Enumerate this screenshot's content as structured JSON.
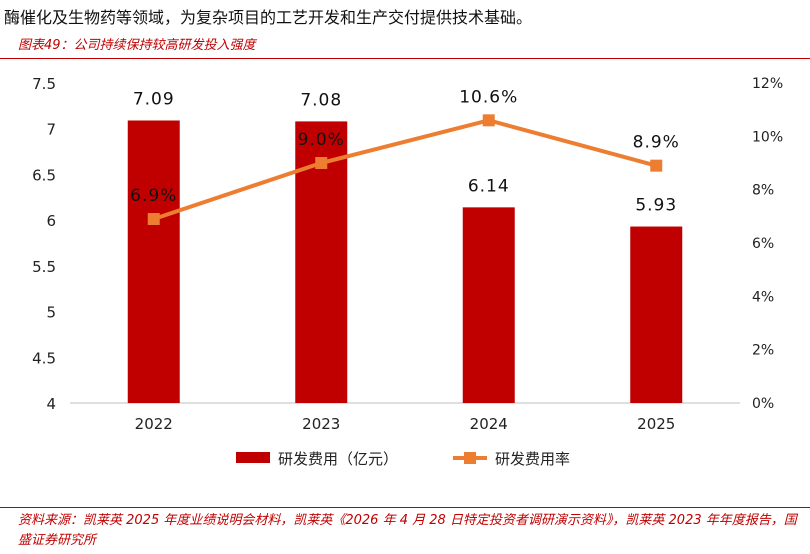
{
  "intro_text": "酶催化及生物药等领域，为复杂项目的工艺开发和生产交付提供技术基础。",
  "figure_title": "图表49：公司持续保持较高研发投入强度",
  "source": "资料来源：凯莱英 2025 年度业绩说明会材料，凯莱英《2026 年 4 月 28 日特定投资者调研演示资料》，凯莱英 2023 年年度报告，国盛证券研究所",
  "colors": {
    "bar": "#c00000",
    "line": "#ed7d31",
    "accent": "#c00000"
  },
  "chart_data": {
    "type": "bar",
    "categories": [
      "2022",
      "2023",
      "2024",
      "2025"
    ],
    "series": [
      {
        "name": "研发费用（亿元）",
        "type": "bar",
        "axis": "left",
        "values": [
          7.09,
          7.08,
          6.14,
          5.93
        ],
        "labels": [
          "7.09",
          "7.08",
          "6.14",
          "5.93"
        ]
      },
      {
        "name": "研发费用率",
        "type": "line",
        "axis": "right",
        "values": [
          6.9,
          9.0,
          10.6,
          8.9
        ],
        "labels": [
          "6.9%",
          "9.0%",
          "10.6%",
          "8.9%"
        ]
      }
    ],
    "y_left": {
      "min": 4,
      "max": 7.5,
      "ticks": [
        "4",
        "4.5",
        "5",
        "5.5",
        "6",
        "6.5",
        "7",
        "7.5"
      ]
    },
    "y_right": {
      "min": 0,
      "max": 12,
      "ticks": [
        "0%",
        "2%",
        "4%",
        "6%",
        "8%",
        "10%",
        "12%"
      ]
    },
    "legend_position": "bottom-center",
    "grid": false
  }
}
